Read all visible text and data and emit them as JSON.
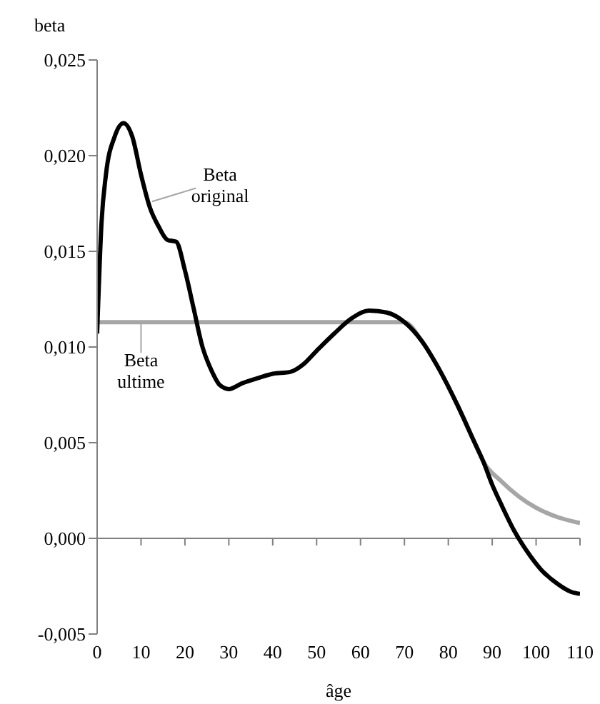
{
  "chart_data": {
    "type": "line",
    "xlabel": "âge",
    "ylabel": "beta",
    "xlim": [
      0,
      110
    ],
    "xticks": [
      0,
      10,
      20,
      30,
      40,
      50,
      60,
      70,
      80,
      90,
      100,
      110
    ],
    "ylim": [
      -0.005,
      0.025
    ],
    "yticks": [
      {
        "value": -0.005,
        "label": "-0,005"
      },
      {
        "value": 0,
        "label": "0,000"
      },
      {
        "value": 0.005,
        "label": "0,005"
      },
      {
        "value": 0.01,
        "label": "0,010"
      },
      {
        "value": 0.015,
        "label": "0,015"
      },
      {
        "value": 0.02,
        "label": "0,020"
      },
      {
        "value": 0.025,
        "label": "0,025"
      }
    ],
    "marker": "none",
    "line_style": "solid",
    "ref_lines": [
      {
        "axis": "y",
        "value": 0,
        "color": "#808080"
      }
    ],
    "series": [
      {
        "name": "Beta original",
        "color": "#000000",
        "x": [
          0,
          1,
          2,
          4,
          6,
          8,
          10,
          12,
          14,
          16,
          18,
          20,
          22,
          24,
          26,
          28,
          30,
          33,
          37,
          40,
          44,
          47,
          50,
          54,
          58,
          62,
          66,
          70,
          74,
          78,
          82,
          86,
          88,
          90,
          92,
          95,
          98,
          101,
          105,
          108,
          110
        ],
        "values": [
          0.0107,
          0.0165,
          0.019,
          0.021,
          0.0217,
          0.021,
          0.019,
          0.0173,
          0.0163,
          0.0156,
          0.0155,
          0.014,
          0.012,
          0.01,
          0.0088,
          0.008,
          0.0078,
          0.0081,
          0.0084,
          0.0086,
          0.0087,
          0.0091,
          0.0098,
          0.0107,
          0.0115,
          0.0119,
          0.0118,
          0.0113,
          0.0103,
          0.0088,
          0.007,
          0.005,
          0.004,
          0.0028,
          0.0018,
          0.0004,
          -0.0007,
          -0.0016,
          -0.0024,
          -0.0028,
          -0.0029
        ]
      },
      {
        "name": "Beta ultime",
        "color": "#a6a6a6",
        "x": [
          0,
          70,
          74,
          78,
          82,
          86,
          88,
          92,
          96,
          100,
          105,
          110
        ],
        "values": [
          0.0113,
          0.0113,
          0.0103,
          0.0088,
          0.007,
          0.005,
          0.004,
          0.003,
          0.0022,
          0.0016,
          0.0011,
          0.0008
        ]
      }
    ]
  }
}
